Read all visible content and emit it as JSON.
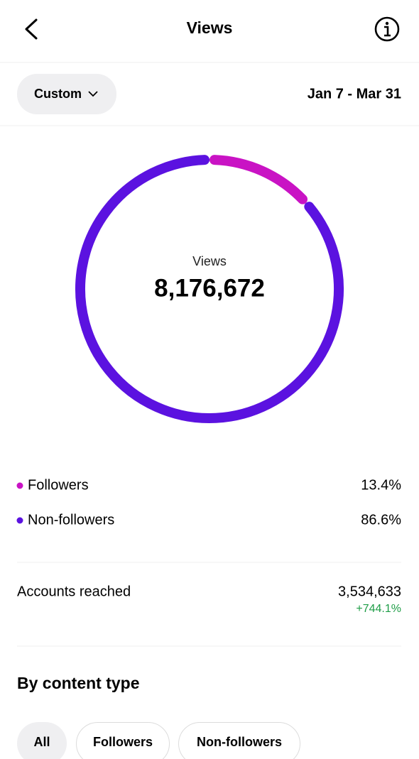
{
  "header": {
    "title": "Views"
  },
  "filter": {
    "period": "Custom",
    "date_range": "Jan 7 - Mar 31"
  },
  "chart_data": {
    "type": "donut",
    "center_label": "Views",
    "center_value": "8,176,672",
    "categories": [
      "Followers",
      "Non-followers"
    ],
    "values": [
      13.4,
      86.6
    ],
    "value_labels": [
      "13.4%",
      "86.6%"
    ],
    "colors": [
      "#c913c4",
      "#5b12e0"
    ]
  },
  "metrics": {
    "label": "Accounts reached",
    "value": "3,534,633",
    "change": "+744.1%"
  },
  "content_type": {
    "title": "By content type",
    "tabs": [
      "All",
      "Followers",
      "Non-followers"
    ]
  }
}
